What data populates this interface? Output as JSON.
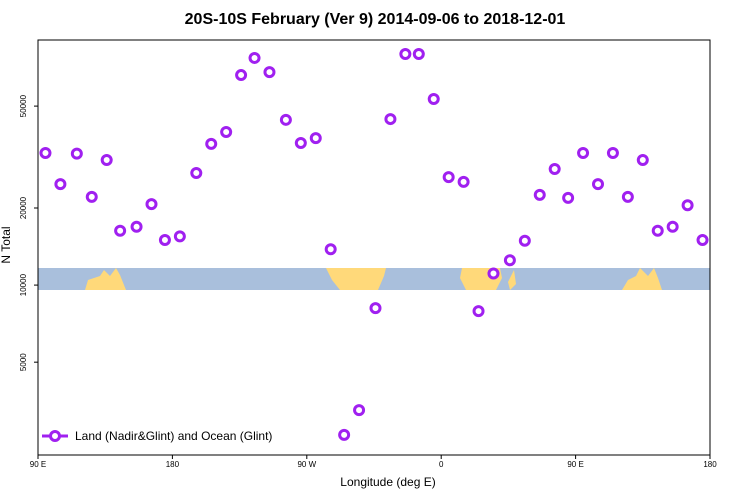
{
  "chart_data": {
    "type": "scatter",
    "title": "20S-10S February (Ver 9)   2014-09-06 to 2018-12-01",
    "x_label": "Longitude (deg E)",
    "y_label": "N Total",
    "ylog": true,
    "xlim": [
      90,
      540
    ],
    "ylim": [
      2170,
      90600
    ],
    "xticks": [
      {
        "value": 90,
        "label": "90 E"
      },
      {
        "value": 180,
        "label": "180"
      },
      {
        "value": 270,
        "label": "90 W"
      },
      {
        "value": 360,
        "label": "0"
      },
      {
        "value": 450,
        "label": "90 E"
      },
      {
        "value": 540,
        "label": "180"
      }
    ],
    "yticks": [
      5000,
      10000,
      20000,
      50000
    ],
    "legend": "bottom-left",
    "series": [
      {
        "name": "Land (Nadir&Glint) and Ocean (Glint)",
        "color": "#a020f0",
        "x": [
          95,
          105,
          116,
          126,
          136,
          145,
          156,
          166,
          175,
          185,
          196,
          206,
          216,
          226,
          235,
          245,
          256,
          266,
          276,
          286,
          295,
          305,
          316,
          326,
          336,
          345,
          355,
          365,
          375,
          385,
          395,
          406,
          416,
          426,
          436,
          445,
          455,
          465,
          475,
          485,
          495,
          505,
          515,
          525,
          535
        ],
        "values": [
          32800,
          24800,
          32600,
          22100,
          30800,
          16300,
          16900,
          20700,
          15000,
          15500,
          27400,
          35600,
          39600,
          66100,
          77100,
          67900,
          44200,
          35900,
          37500,
          13800,
          2600,
          3250,
          8130,
          44500,
          79900,
          79900,
          53300,
          26400,
          25300,
          7910,
          11100,
          12500,
          14900,
          22500,
          28400,
          21900,
          32800,
          24800,
          32800,
          22100,
          30800,
          16300,
          16900,
          20500,
          15000
        ]
      }
    ]
  }
}
